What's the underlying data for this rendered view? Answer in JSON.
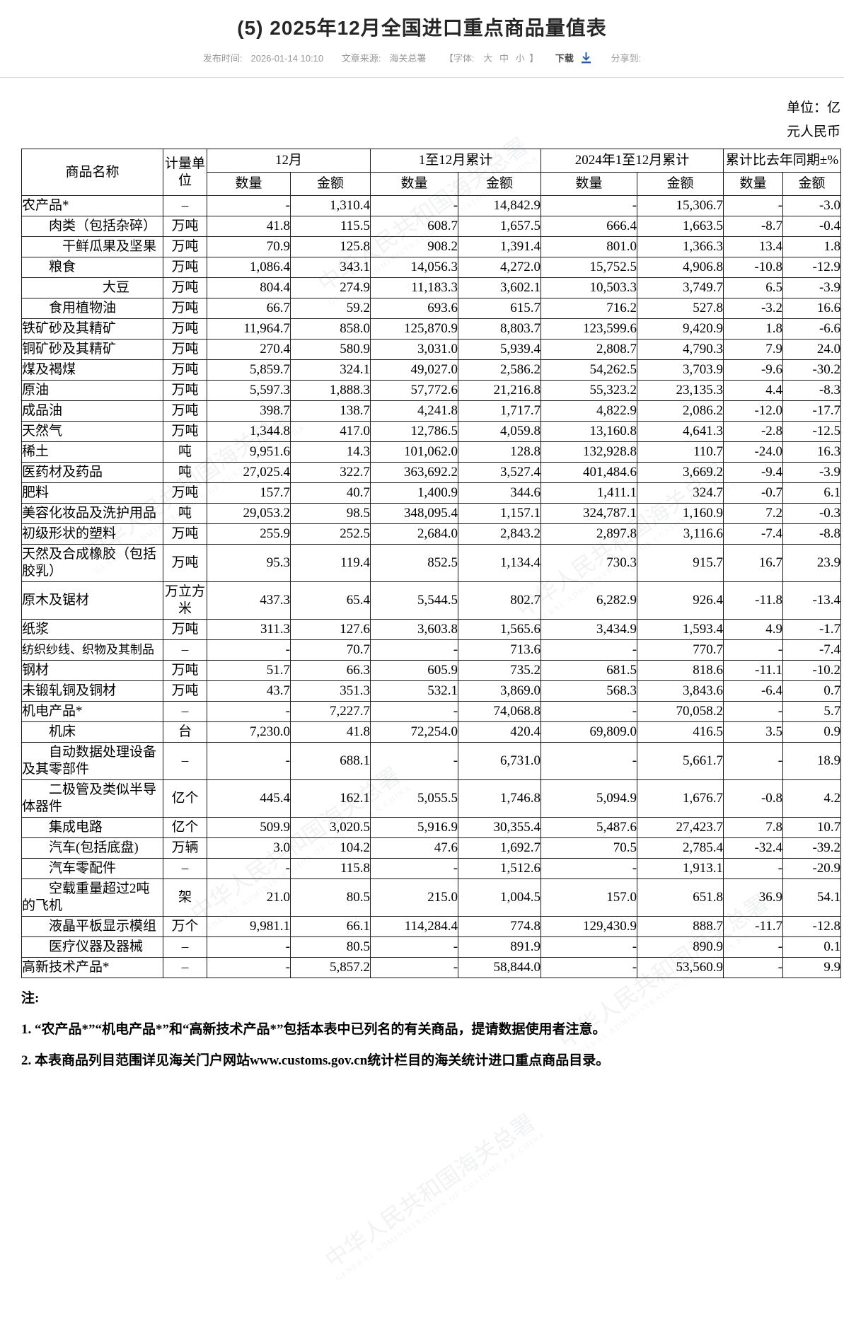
{
  "header": {
    "title": "(5) 2025年12月全国进口重点商品量值表"
  },
  "meta": {
    "publish_label": "发布时间:",
    "publish_value": "2026-01-14 10:10",
    "source_label": "文章来源:",
    "source_value": "海关总署",
    "font_label": "【字体:",
    "font_sizes": [
      "大",
      "中",
      "小"
    ],
    "font_close": "】",
    "download_label": "下载",
    "download_icon_color": "#2b5ba8",
    "share_label": "分享到:"
  },
  "unit_note": {
    "line1": "单位：亿",
    "line2": "元人民币"
  },
  "watermark": {
    "text": "中华人民共和国海关总署",
    "subtext": "GENERAL ADMINISTRATION OF CUSTOMS P.R.CHINA"
  },
  "table": {
    "header": {
      "name": "商品名称",
      "unit": "计量单位",
      "groups": [
        "12月",
        "1至12月累计",
        "2024年1至12月累计",
        "累计比去年同期±%"
      ],
      "sub_quantity": "数量",
      "sub_amount": "金额"
    },
    "rows": [
      {
        "name": "农产品*",
        "indent": 0,
        "unit": "–",
        "values": [
          "-",
          "1,310.4",
          "-",
          "14,842.9",
          "-",
          "15,306.7",
          "-",
          "-3.0"
        ]
      },
      {
        "name": "肉类（包括杂碎）",
        "indent": 2,
        "unit": "万吨",
        "values": [
          "41.8",
          "115.5",
          "608.7",
          "1,657.5",
          "666.4",
          "1,663.5",
          "-8.7",
          "-0.4"
        ]
      },
      {
        "name": "干鲜瓜果及坚果",
        "indent": 3,
        "unit": "万吨",
        "values": [
          "70.9",
          "125.8",
          "908.2",
          "1,391.4",
          "801.0",
          "1,366.3",
          "13.4",
          "1.8"
        ]
      },
      {
        "name": "粮食",
        "indent": 2,
        "unit": "万吨",
        "values": [
          "1,086.4",
          "343.1",
          "14,056.3",
          "4,272.0",
          "15,752.5",
          "4,906.8",
          "-10.8",
          "-12.9"
        ]
      },
      {
        "name": "大豆",
        "indent": 6,
        "unit": "万吨",
        "values": [
          "804.4",
          "274.9",
          "11,183.3",
          "3,602.1",
          "10,503.3",
          "3,749.7",
          "6.5",
          "-3.9"
        ]
      },
      {
        "name": "食用植物油",
        "indent": 2,
        "unit": "万吨",
        "values": [
          "66.7",
          "59.2",
          "693.6",
          "615.7",
          "716.2",
          "527.8",
          "-3.2",
          "16.6"
        ]
      },
      {
        "name": "铁矿砂及其精矿",
        "indent": 0,
        "unit": "万吨",
        "values": [
          "11,964.7",
          "858.0",
          "125,870.9",
          "8,803.7",
          "123,599.6",
          "9,420.9",
          "1.8",
          "-6.6"
        ]
      },
      {
        "name": "铜矿砂及其精矿",
        "indent": 0,
        "unit": "万吨",
        "values": [
          "270.4",
          "580.9",
          "3,031.0",
          "5,939.4",
          "2,808.7",
          "4,790.3",
          "7.9",
          "24.0"
        ]
      },
      {
        "name": "煤及褐煤",
        "indent": 0,
        "unit": "万吨",
        "values": [
          "5,859.7",
          "324.1",
          "49,027.0",
          "2,586.2",
          "54,262.5",
          "3,703.9",
          "-9.6",
          "-30.2"
        ]
      },
      {
        "name": "原油",
        "indent": 0,
        "unit": "万吨",
        "values": [
          "5,597.3",
          "1,888.3",
          "57,772.6",
          "21,216.8",
          "55,323.2",
          "23,135.3",
          "4.4",
          "-8.3"
        ]
      },
      {
        "name": "成品油",
        "indent": 0,
        "unit": "万吨",
        "values": [
          "398.7",
          "138.7",
          "4,241.8",
          "1,717.7",
          "4,822.9",
          "2,086.2",
          "-12.0",
          "-17.7"
        ]
      },
      {
        "name": "天然气",
        "indent": 0,
        "unit": "万吨",
        "values": [
          "1,344.8",
          "417.0",
          "12,786.5",
          "4,059.8",
          "13,160.8",
          "4,641.3",
          "-2.8",
          "-12.5"
        ]
      },
      {
        "name": "稀土",
        "indent": 0,
        "unit": "吨",
        "values": [
          "9,951.6",
          "14.3",
          "101,062.0",
          "128.8",
          "132,928.8",
          "110.7",
          "-24.0",
          "16.3"
        ]
      },
      {
        "name": "医药材及药品",
        "indent": 0,
        "unit": "吨",
        "values": [
          "27,025.4",
          "322.7",
          "363,692.2",
          "3,527.4",
          "401,484.6",
          "3,669.2",
          "-9.4",
          "-3.9"
        ]
      },
      {
        "name": "肥料",
        "indent": 0,
        "unit": "万吨",
        "values": [
          "157.7",
          "40.7",
          "1,400.9",
          "344.6",
          "1,411.1",
          "324.7",
          "-0.7",
          "6.1"
        ]
      },
      {
        "name": "美容化妆品及洗护用品",
        "indent": 0,
        "unit": "吨",
        "values": [
          "29,053.2",
          "98.5",
          "348,095.4",
          "1,157.1",
          "324,787.1",
          "1,160.9",
          "7.2",
          "-0.3"
        ]
      },
      {
        "name": "初级形状的塑料",
        "indent": 0,
        "unit": "万吨",
        "values": [
          "255.9",
          "252.5",
          "2,684.0",
          "2,843.2",
          "2,897.8",
          "3,116.6",
          "-7.4",
          "-8.8"
        ]
      },
      {
        "name": "天然及合成橡胶（包括胶乳）",
        "indent": 0,
        "unit": "万吨",
        "values": [
          "95.3",
          "119.4",
          "852.5",
          "1,134.4",
          "730.3",
          "915.7",
          "16.7",
          "23.9"
        ]
      },
      {
        "name": "原木及锯材",
        "indent": 0,
        "unit": "万立方米",
        "values": [
          "437.3",
          "65.4",
          "5,544.5",
          "802.7",
          "6,282.9",
          "926.4",
          "-11.8",
          "-13.4"
        ]
      },
      {
        "name": "纸浆",
        "indent": 0,
        "unit": "万吨",
        "values": [
          "311.3",
          "127.6",
          "3,603.8",
          "1,565.6",
          "3,434.9",
          "1,593.4",
          "4.9",
          "-1.7"
        ]
      },
      {
        "name": "纺织纱线、织物及其制品",
        "indent": 0,
        "shrink": true,
        "unit": "–",
        "values": [
          "-",
          "70.7",
          "-",
          "713.6",
          "-",
          "770.7",
          "-",
          "-7.4"
        ]
      },
      {
        "name": "钢材",
        "indent": 0,
        "unit": "万吨",
        "values": [
          "51.7",
          "66.3",
          "605.9",
          "735.2",
          "681.5",
          "818.6",
          "-11.1",
          "-10.2"
        ]
      },
      {
        "name": "未锻轧铜及铜材",
        "indent": 0,
        "unit": "万吨",
        "values": [
          "43.7",
          "351.3",
          "532.1",
          "3,869.0",
          "568.3",
          "3,843.6",
          "-6.4",
          "0.7"
        ]
      },
      {
        "name": "机电产品*",
        "indent": 0,
        "unit": "–",
        "values": [
          "-",
          "7,227.7",
          "-",
          "74,068.8",
          "-",
          "70,058.2",
          "-",
          "5.7"
        ]
      },
      {
        "name": "机床",
        "indent": 2,
        "unit": "台",
        "values": [
          "7,230.0",
          "41.8",
          "72,254.0",
          "420.4",
          "69,809.0",
          "416.5",
          "3.5",
          "0.9"
        ]
      },
      {
        "name": "自动数据处理设备及其零部件",
        "indent": 2,
        "unit": "–",
        "values": [
          "-",
          "688.1",
          "-",
          "6,731.0",
          "-",
          "5,661.7",
          "-",
          "18.9"
        ]
      },
      {
        "name": "二极管及类似半导体器件",
        "indent": 2,
        "unit": "亿个",
        "values": [
          "445.4",
          "162.1",
          "5,055.5",
          "1,746.8",
          "5,094.9",
          "1,676.7",
          "-0.8",
          "4.2"
        ]
      },
      {
        "name": "集成电路",
        "indent": 2,
        "unit": "亿个",
        "values": [
          "509.9",
          "3,020.5",
          "5,916.9",
          "30,355.4",
          "5,487.6",
          "27,423.7",
          "7.8",
          "10.7"
        ]
      },
      {
        "name": "汽车(包括底盘)",
        "indent": 2,
        "unit": "万辆",
        "values": [
          "3.0",
          "104.2",
          "47.6",
          "1,692.7",
          "70.5",
          "2,785.4",
          "-32.4",
          "-39.2"
        ]
      },
      {
        "name": "汽车零配件",
        "indent": 2,
        "unit": "–",
        "values": [
          "-",
          "115.8",
          "-",
          "1,512.6",
          "-",
          "1,913.1",
          "-",
          "-20.9"
        ]
      },
      {
        "name": "空载重量超过2吨的飞机",
        "indent": 2,
        "unit": "架",
        "values": [
          "21.0",
          "80.5",
          "215.0",
          "1,004.5",
          "157.0",
          "651.8",
          "36.9",
          "54.1"
        ]
      },
      {
        "name": "液晶平板显示模组",
        "indent": 2,
        "unit": "万个",
        "values": [
          "9,981.1",
          "66.1",
          "114,284.4",
          "774.8",
          "129,430.9",
          "888.7",
          "-11.7",
          "-12.8"
        ]
      },
      {
        "name": "医疗仪器及器械",
        "indent": 2,
        "unit": "–",
        "values": [
          "-",
          "80.5",
          "-",
          "891.9",
          "-",
          "890.9",
          "-",
          "0.1"
        ]
      },
      {
        "name": "高新技术产品*",
        "indent": 0,
        "unit": "–",
        "values": [
          "-",
          "5,857.2",
          "-",
          "58,844.0",
          "-",
          "53,560.9",
          "-",
          "9.9"
        ]
      }
    ]
  },
  "notes": {
    "label": "注:",
    "items": [
      "1.  “农产品*”“机电产品*”和“高新技术产品*”包括本表中已列名的有关商品，提请数据使用者注意。",
      "2.  本表商品列目范围详见海关门户网站www.customs.gov.cn统计栏目的海关统计进口重点商品目录。"
    ]
  }
}
